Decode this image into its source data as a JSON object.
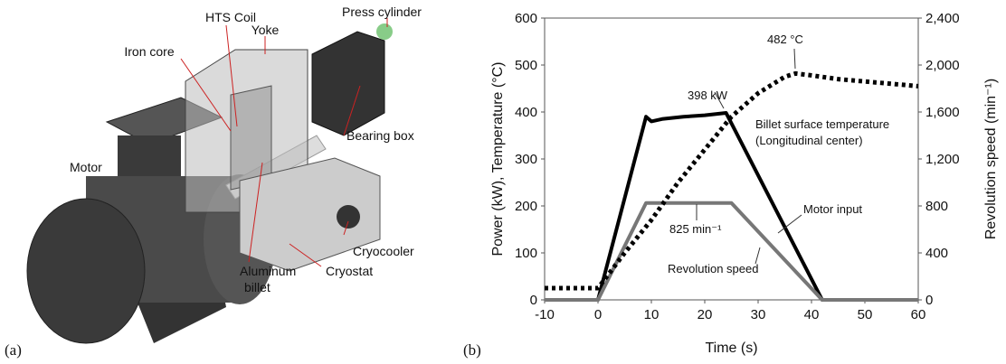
{
  "panel_labels": [
    "(a)",
    "(b)"
  ],
  "diagram": {
    "labels": [
      "Press cylinder",
      "HTS Coil",
      "Yoke",
      "Iron core",
      "Bearing box",
      "Motor",
      "Cryocooler",
      "Aluminum",
      "billet",
      "Cryostat"
    ]
  },
  "chart_data": {
    "type": "line",
    "x_label": "Time (s)",
    "y_label": "Power (kW), Temperature (°C)",
    "y2_label": "Revolution speed (min⁻¹)",
    "xlim": [
      -10,
      60
    ],
    "xticks": [
      -10,
      0,
      10,
      20,
      30,
      40,
      50,
      60
    ],
    "ylim": [
      0,
      600
    ],
    "yticks": [
      0,
      100,
      200,
      300,
      400,
      500,
      600
    ],
    "y2lim": [
      0,
      2400
    ],
    "y2ticks": [
      0,
      400,
      800,
      {
        "value": 1200,
        "label": "1,200"
      },
      {
        "value": 1600,
        "label": "1,600"
      },
      {
        "value": 2000,
        "label": "2,000"
      },
      {
        "value": 2400,
        "label": "2,400"
      }
    ],
    "annotations": [
      "482 °C",
      "398 kW",
      "(Longitudinal center)",
      "825 min⁻¹"
    ],
    "series": [
      {
        "name": "Motor input",
        "color": "#000000",
        "x": [
          -10,
          0,
          9,
          10,
          12,
          16,
          20,
          24,
          42,
          60
        ],
        "values": [
          0,
          0,
          390,
          380,
          385,
          390,
          393,
          398,
          0,
          0
        ]
      },
      {
        "name": "Revolution speed",
        "color": "#777777",
        "axis": "y2",
        "x": [
          -10,
          0,
          9,
          25,
          42,
          60
        ],
        "values": [
          0,
          0,
          825,
          825,
          0,
          0
        ]
      },
      {
        "name": "Billet surface temperature",
        "color": "#000000",
        "dashed": true,
        "x": [
          -10,
          0,
          5,
          10,
          15,
          20,
          25,
          30,
          35,
          37,
          40,
          45,
          50,
          55,
          60
        ],
        "values": [
          25,
          25,
          100,
          170,
          250,
          320,
          390,
          440,
          475,
          482,
          478,
          470,
          465,
          460,
          455
        ]
      }
    ]
  }
}
